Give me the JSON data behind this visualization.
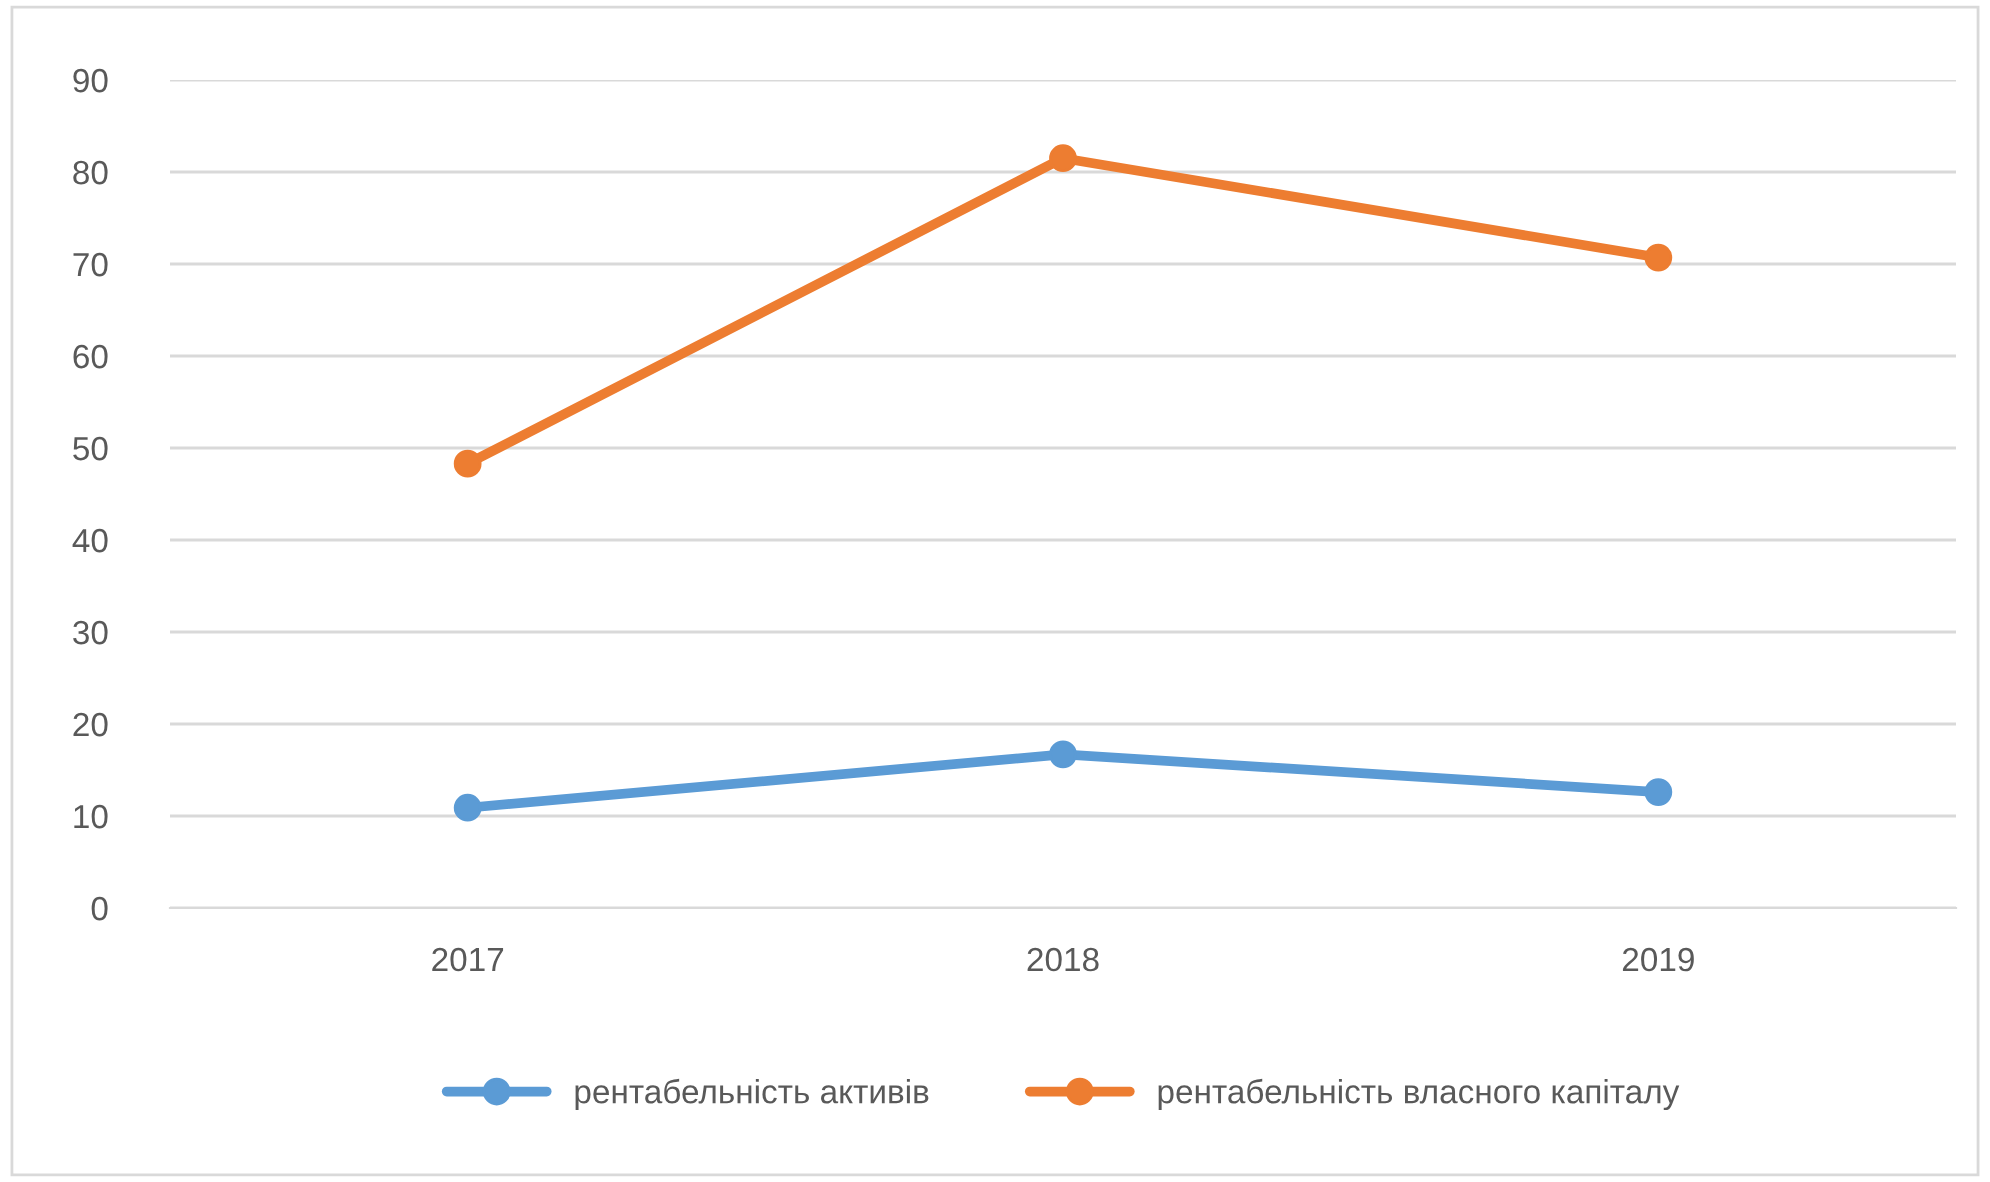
{
  "chart_data": {
    "type": "line",
    "categories": [
      "2017",
      "2018",
      "2019"
    ],
    "series": [
      {
        "name": "рентабельність активів",
        "color": "#5b9bd5",
        "values": [
          10.9,
          16.7,
          12.6
        ]
      },
      {
        "name": "рентабельність власного капіталу",
        "color": "#ed7d31",
        "values": [
          48.3,
          81.5,
          70.7
        ]
      }
    ],
    "ylim": [
      0,
      90
    ],
    "yticks": [
      0,
      10,
      20,
      30,
      40,
      50,
      60,
      70,
      80,
      90
    ],
    "grid": "y",
    "legend": "bottom",
    "marker": "circle",
    "line_style": "solid"
  }
}
